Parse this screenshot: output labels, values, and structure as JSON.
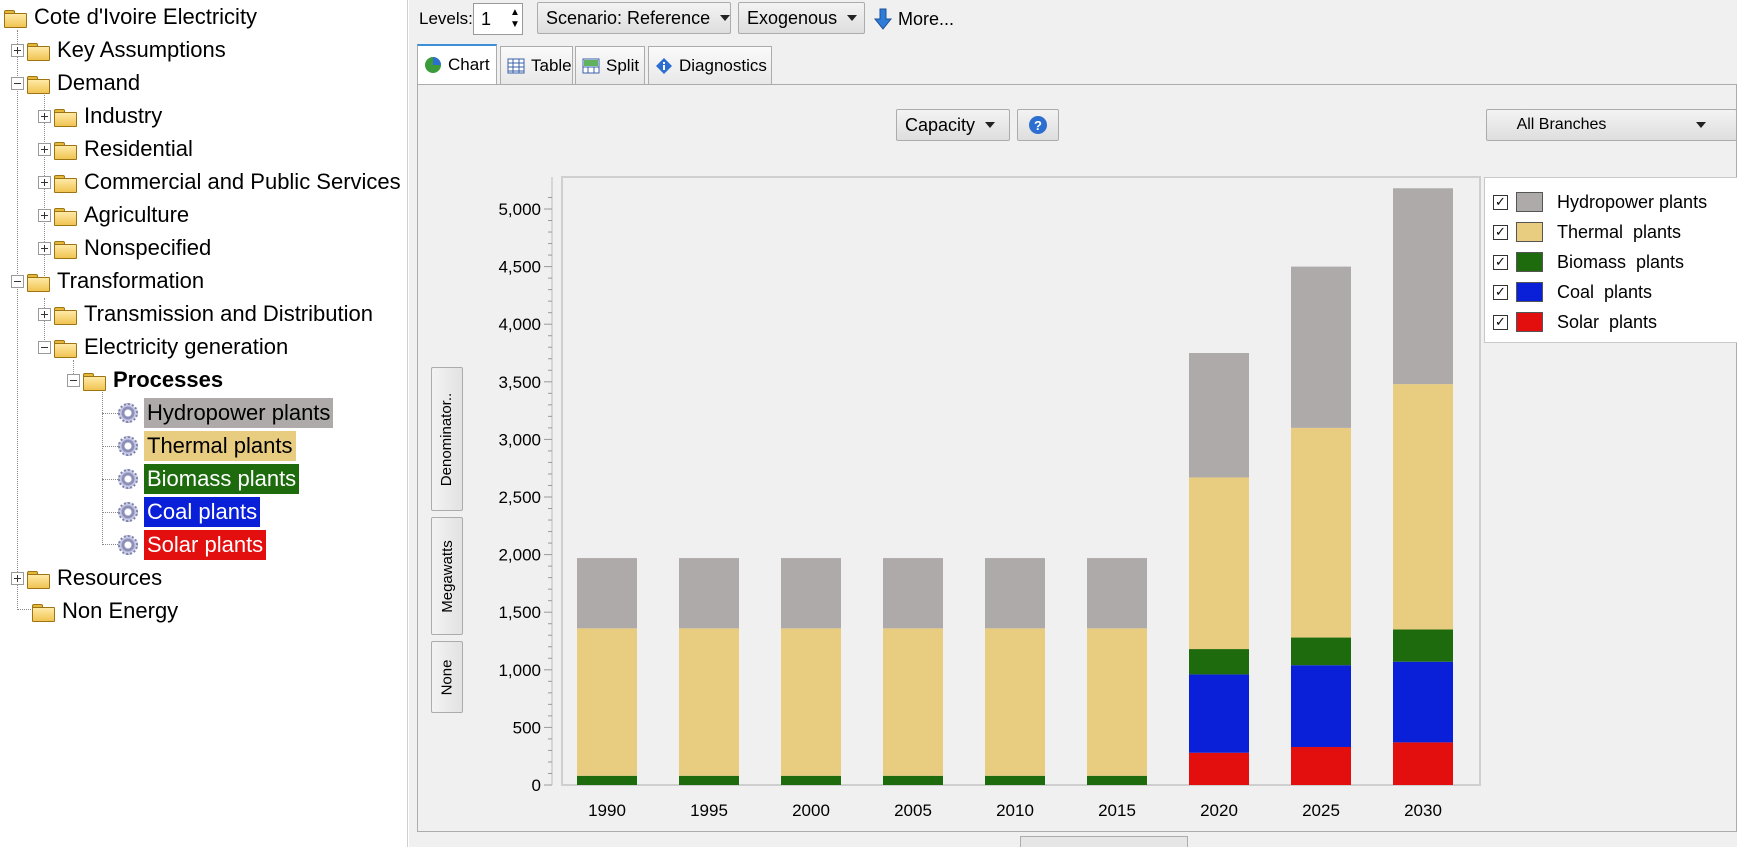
{
  "tree": {
    "root": "Cote d'Ivoire Electricity",
    "key_assumptions": "Key Assumptions",
    "demand": "Demand",
    "industry": "Industry",
    "residential": "Residential",
    "commercial": "Commercial and Public Services",
    "agriculture": "Agriculture",
    "nonspecified": "Nonspecified",
    "transformation": "Transformation",
    "transmission": "Transmission and Distribution",
    "electricity_generation": "Electricity generation",
    "processes": "Processes",
    "hydro": "Hydropower plants",
    "thermal": "Thermal plants",
    "biomass": "Biomass plants",
    "coal": "Coal plants",
    "solar": "Solar plants",
    "resources": "Resources",
    "non_energy": "Non Energy"
  },
  "toolbar": {
    "levels_label": "Levels:",
    "levels_value": "1",
    "scenario": "Scenario: Reference",
    "exogenous": "Exogenous",
    "more": "More..."
  },
  "tabs": {
    "chart": "Chart",
    "table": "Table",
    "split": "Split",
    "diagnostics": "Diagnostics"
  },
  "chart_controls": {
    "variable": "Capacity",
    "branches": "All Branches",
    "denominator": "Denominator..",
    "unit": "Megawatts",
    "none": "None"
  },
  "legend": {
    "hydro": "Hydropower plants",
    "thermal": "Thermal  plants",
    "biomass": "Biomass  plants",
    "coal": "Coal  plants",
    "solar": "Solar  plants"
  },
  "colors": {
    "hydro": "#aeaaaa",
    "thermal": "#e8cc80",
    "biomass": "#1e6b0e",
    "coal": "#0a1fd8",
    "solar": "#e30f0f"
  },
  "chart_data": {
    "type": "bar",
    "stacked": true,
    "categories": [
      "1990",
      "1995",
      "2000",
      "2005",
      "2010",
      "2015",
      "2020",
      "2025",
      "2030"
    ],
    "series": [
      {
        "name": "Solar plants",
        "values": [
          0,
          0,
          0,
          0,
          0,
          0,
          280,
          330,
          370
        ]
      },
      {
        "name": "Coal plants",
        "values": [
          0,
          0,
          0,
          0,
          0,
          0,
          680,
          710,
          700
        ]
      },
      {
        "name": "Biomass plants",
        "values": [
          80,
          80,
          80,
          80,
          80,
          80,
          220,
          240,
          280
        ]
      },
      {
        "name": "Thermal plants",
        "values": [
          1280,
          1280,
          1280,
          1280,
          1280,
          1280,
          1490,
          1820,
          2130
        ]
      },
      {
        "name": "Hydropower plants",
        "values": [
          610,
          610,
          610,
          610,
          610,
          610,
          1080,
          1400,
          1700
        ]
      }
    ],
    "ylabel": "Megawatts",
    "ylim": [
      0,
      5200
    ],
    "yticks": [
      "0",
      "500",
      "1,000",
      "1,500",
      "2,000",
      "2,500",
      "3,000",
      "3,500",
      "4,000",
      "4,500",
      "5,000"
    ],
    "legend_position": "right"
  }
}
